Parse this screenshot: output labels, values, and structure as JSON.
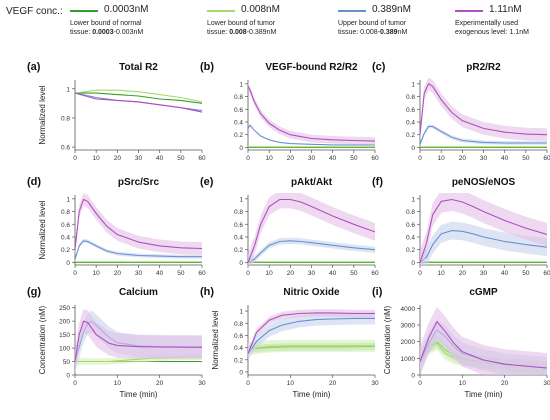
{
  "legend": {
    "title": "VEGF conc.:",
    "items": [
      {
        "conc": "0.0003nM",
        "color": "#33a02c",
        "note_pre": "Lower bound of normal",
        "note_mid": "tissue: ",
        "note_bold": "0.0003",
        "note_post": "-0.003nM"
      },
      {
        "conc": "0.008nM",
        "color": "#a6d96a",
        "note_pre": "Lower bound of tumor",
        "note_mid": "tissue: ",
        "note_bold": "0.008",
        "note_post": "-0.389nM"
      },
      {
        "conc": "0.389nM",
        "color": "#6a8fd0",
        "note_pre": "Upper bound of tumor",
        "note_mid": "tissue: 0.008-",
        "note_bold": "0.389",
        "note_post": "nM"
      },
      {
        "conc": "1.11nM",
        "color": "#b04fc0",
        "note_pre": "Experimentally used",
        "note_mid": "exogenous level: 1.1nM",
        "note_bold": "",
        "note_post": ""
      }
    ]
  },
  "bands": {
    "#33a02c": "#a9d9a0",
    "#a6d96a": "#d6eeb8",
    "#6a8fd0": "#c7d4ee",
    "#b04fc0": "#e3bfe6"
  },
  "xlabel_bottom": "Time (min)",
  "chart_data": [
    {
      "type": "line",
      "panel": "(a)",
      "title": "Total R2",
      "ylabel": "Normalized  level",
      "xlim": [
        0,
        60
      ],
      "ylim": [
        0.58,
        1.06
      ],
      "xticks": [
        0,
        10,
        20,
        30,
        40,
        50,
        60
      ],
      "yticks": [
        0.6,
        0.8,
        1
      ],
      "series": [
        {
          "color": "#33a02c",
          "x": [
            0,
            10,
            20,
            30,
            40,
            50,
            60
          ],
          "y": [
            0.97,
            0.97,
            0.96,
            0.95,
            0.93,
            0.92,
            0.9
          ]
        },
        {
          "color": "#a6d96a",
          "x": [
            0,
            10,
            20,
            30,
            40,
            50,
            60
          ],
          "y": [
            0.97,
            0.99,
            0.99,
            0.98,
            0.96,
            0.94,
            0.91
          ]
        },
        {
          "color": "#6a8fd0",
          "x": [
            0,
            10,
            20,
            30,
            40,
            50,
            60
          ],
          "y": [
            0.97,
            0.94,
            0.92,
            0.91,
            0.89,
            0.87,
            0.85
          ]
        },
        {
          "color": "#b04fc0",
          "x": [
            0,
            10,
            20,
            30,
            40,
            50,
            60
          ],
          "y": [
            0.97,
            0.93,
            0.92,
            0.91,
            0.89,
            0.87,
            0.84
          ]
        }
      ]
    },
    {
      "type": "line",
      "panel": "(b)",
      "title": "VEGF-bound R2/R2",
      "ylabel": "",
      "xlim": [
        0,
        60
      ],
      "ylim": [
        -0.04,
        1.06
      ],
      "xticks": [
        0,
        10,
        20,
        30,
        40,
        50,
        60
      ],
      "yticks": [
        0,
        0.2,
        0.4,
        0.6,
        0.8,
        1
      ],
      "series": [
        {
          "color": "#33a02c",
          "x": [
            0,
            10,
            20,
            30,
            40,
            50,
            60
          ],
          "y": [
            0,
            0,
            0,
            0,
            0,
            0,
            0
          ]
        },
        {
          "color": "#a6d96a",
          "x": [
            0,
            10,
            20,
            30,
            40,
            50,
            60
          ],
          "y": [
            0.01,
            0.01,
            0.01,
            0.01,
            0.01,
            0.01,
            0.01
          ]
        },
        {
          "color": "#6a8fd0",
          "x": [
            0,
            1,
            3,
            6,
            10,
            15,
            20,
            30,
            40,
            50,
            60
          ],
          "y": [
            0.3,
            0.35,
            0.27,
            0.18,
            0.12,
            0.08,
            0.06,
            0.05,
            0.04,
            0.04,
            0.04
          ]
        },
        {
          "color": "#b04fc0",
          "x": [
            0,
            1,
            3,
            6,
            10,
            15,
            20,
            30,
            40,
            50,
            60
          ],
          "y": [
            0.96,
            0.9,
            0.72,
            0.53,
            0.38,
            0.27,
            0.2,
            0.14,
            0.12,
            0.11,
            0.1
          ],
          "band": 0.06
        }
      ]
    },
    {
      "type": "line",
      "panel": "(c)",
      "title": "pR2/R2",
      "ylabel": "",
      "xlim": [
        0,
        60
      ],
      "ylim": [
        -0.04,
        1.06
      ],
      "xticks": [
        0,
        10,
        20,
        30,
        40,
        50,
        60
      ],
      "yticks": [
        0,
        0.2,
        0.4,
        0.6,
        0.8,
        1
      ],
      "series": [
        {
          "color": "#33a02c",
          "x": [
            0,
            10,
            20,
            30,
            40,
            50,
            60
          ],
          "y": [
            0,
            0,
            0,
            0,
            0,
            0,
            0
          ]
        },
        {
          "color": "#a6d96a",
          "x": [
            0,
            10,
            20,
            30,
            40,
            50,
            60
          ],
          "y": [
            0.01,
            0.01,
            0.01,
            0.01,
            0.01,
            0.01,
            0.01
          ]
        },
        {
          "color": "#6a8fd0",
          "x": [
            0,
            2,
            4,
            6,
            10,
            15,
            20,
            30,
            40,
            50,
            60
          ],
          "y": [
            0.05,
            0.22,
            0.33,
            0.33,
            0.25,
            0.16,
            0.11,
            0.08,
            0.07,
            0.07,
            0.07
          ],
          "band": 0.03
        },
        {
          "color": "#b04fc0",
          "x": [
            0,
            2,
            4,
            6,
            10,
            15,
            20,
            30,
            40,
            50,
            60
          ],
          "y": [
            0.2,
            0.85,
            1.0,
            0.96,
            0.75,
            0.55,
            0.42,
            0.3,
            0.24,
            0.21,
            0.2
          ],
          "band": 0.1
        }
      ]
    },
    {
      "type": "line",
      "panel": "(d)",
      "title": "pSrc/Src",
      "ylabel": "Normalized  level",
      "xlim": [
        0,
        60
      ],
      "ylim": [
        -0.04,
        1.06
      ],
      "xticks": [
        0,
        10,
        20,
        30,
        40,
        50,
        60
      ],
      "yticks": [
        0,
        0.2,
        0.4,
        0.6,
        0.8,
        1
      ],
      "series": [
        {
          "color": "#33a02c",
          "x": [
            0,
            10,
            20,
            30,
            40,
            50,
            60
          ],
          "y": [
            0,
            0,
            0,
            0,
            0,
            0,
            0
          ]
        },
        {
          "color": "#a6d96a",
          "x": [
            0,
            10,
            20,
            30,
            40,
            50,
            60
          ],
          "y": [
            0.01,
            0.01,
            0.01,
            0.01,
            0.01,
            0.01,
            0.01
          ]
        },
        {
          "color": "#6a8fd0",
          "x": [
            0,
            2,
            4,
            6,
            10,
            15,
            20,
            30,
            40,
            50,
            60
          ],
          "y": [
            0.05,
            0.26,
            0.34,
            0.33,
            0.26,
            0.18,
            0.14,
            0.11,
            0.1,
            0.09,
            0.09
          ],
          "band": 0.03
        },
        {
          "color": "#b04fc0",
          "x": [
            0,
            2,
            4,
            6,
            10,
            15,
            20,
            30,
            40,
            50,
            60
          ],
          "y": [
            0.2,
            0.8,
            0.99,
            0.96,
            0.77,
            0.57,
            0.44,
            0.32,
            0.26,
            0.23,
            0.22
          ],
          "band": 0.1
        }
      ]
    },
    {
      "type": "line",
      "panel": "(e)",
      "title": "pAkt/Akt",
      "ylabel": "",
      "xlim": [
        0,
        60
      ],
      "ylim": [
        -0.04,
        1.06
      ],
      "xticks": [
        0,
        10,
        20,
        30,
        40,
        50,
        60
      ],
      "yticks": [
        0,
        0.2,
        0.4,
        0.6,
        0.8,
        1
      ],
      "series": [
        {
          "color": "#33a02c",
          "x": [
            0,
            10,
            20,
            30,
            40,
            50,
            60
          ],
          "y": [
            0,
            0,
            0,
            0,
            0,
            0,
            0
          ]
        },
        {
          "color": "#a6d96a",
          "x": [
            0,
            10,
            20,
            30,
            40,
            50,
            60
          ],
          "y": [
            0.01,
            0.01,
            0.01,
            0.01,
            0.01,
            0.01,
            0.01
          ]
        },
        {
          "color": "#6a8fd0",
          "x": [
            0,
            3,
            6,
            10,
            15,
            20,
            25,
            30,
            40,
            50,
            60
          ],
          "y": [
            0,
            0.05,
            0.15,
            0.27,
            0.33,
            0.34,
            0.33,
            0.31,
            0.27,
            0.23,
            0.2
          ],
          "band": 0.05
        },
        {
          "color": "#b04fc0",
          "x": [
            0,
            3,
            6,
            10,
            15,
            20,
            25,
            30,
            40,
            50,
            60
          ],
          "y": [
            0,
            0.25,
            0.6,
            0.88,
            0.99,
            0.99,
            0.95,
            0.88,
            0.73,
            0.6,
            0.48
          ],
          "band": 0.14
        }
      ]
    },
    {
      "type": "line",
      "panel": "(f)",
      "title": "peNOS/eNOS",
      "ylabel": "",
      "xlim": [
        0,
        60
      ],
      "ylim": [
        -0.04,
        1.06
      ],
      "xticks": [
        0,
        10,
        20,
        30,
        40,
        50,
        60
      ],
      "yticks": [
        0,
        0.2,
        0.4,
        0.6,
        0.8,
        1
      ],
      "series": [
        {
          "color": "#33a02c",
          "x": [
            0,
            10,
            20,
            30,
            40,
            50,
            60
          ],
          "y": [
            0,
            0,
            0,
            0,
            0,
            0,
            0
          ]
        },
        {
          "color": "#a6d96a",
          "x": [
            0,
            10,
            20,
            30,
            40,
            50,
            60
          ],
          "y": [
            0.01,
            0.01,
            0.01,
            0.01,
            0.01,
            0.01,
            0.01
          ]
        },
        {
          "color": "#6a8fd0",
          "x": [
            0,
            3,
            6,
            10,
            15,
            20,
            25,
            30,
            40,
            50,
            60
          ],
          "y": [
            0,
            0.08,
            0.28,
            0.45,
            0.5,
            0.49,
            0.45,
            0.4,
            0.33,
            0.28,
            0.24
          ],
          "band": 0.14
        },
        {
          "color": "#b04fc0",
          "x": [
            0,
            3,
            6,
            10,
            15,
            20,
            25,
            30,
            40,
            50,
            60
          ],
          "y": [
            0,
            0.3,
            0.75,
            0.96,
            0.99,
            0.95,
            0.88,
            0.8,
            0.66,
            0.54,
            0.44
          ],
          "band": 0.18
        }
      ]
    },
    {
      "type": "line",
      "panel": "(g)",
      "title": "Calcium",
      "ylabel": "Concentration (nM)",
      "xlim": [
        0,
        30
      ],
      "ylim": [
        0,
        260
      ],
      "xticks": [
        0,
        10,
        20,
        30
      ],
      "yticks": [
        0,
        50,
        100,
        150,
        200,
        250
      ],
      "series": [
        {
          "color": "#33a02c",
          "x": [
            0,
            10,
            20,
            30
          ],
          "y": [
            50,
            50,
            50,
            50
          ]
        },
        {
          "color": "#a6d96a",
          "x": [
            0,
            8,
            12,
            18,
            24,
            30
          ],
          "y": [
            50,
            50,
            55,
            62,
            66,
            68
          ],
          "band": 12
        },
        {
          "color": "#6a8fd0",
          "x": [
            0,
            2,
            3,
            4,
            6,
            8,
            10,
            15,
            20,
            30
          ],
          "y": [
            50,
            160,
            190,
            200,
            170,
            140,
            120,
            108,
            105,
            104
          ],
          "band": 40
        },
        {
          "color": "#b04fc0",
          "x": [
            0,
            1,
            2,
            3,
            5,
            8,
            10,
            15,
            20,
            30
          ],
          "y": [
            50,
            150,
            200,
            195,
            150,
            118,
            110,
            105,
            104,
            103
          ],
          "band": 45
        }
      ]
    },
    {
      "type": "line",
      "panel": "(h)",
      "title": "Nitric Oxide",
      "ylabel": "Normalized  level",
      "xlim": [
        0,
        30
      ],
      "ylim": [
        -0.05,
        1.1
      ],
      "xticks": [
        0,
        10,
        20,
        30
      ],
      "yticks": [
        0,
        0.2,
        0.4,
        0.6,
        0.8,
        1
      ],
      "series": [
        {
          "color": "#33a02c",
          "x": [
            0,
            5,
            10,
            20,
            30
          ],
          "y": [
            0.38,
            0.4,
            0.41,
            0.41,
            0.42
          ],
          "band": 0.06
        },
        {
          "color": "#a6d96a",
          "x": [
            0,
            5,
            10,
            20,
            30
          ],
          "y": [
            0.38,
            0.42,
            0.43,
            0.43,
            0.43
          ],
          "band": 0.1
        },
        {
          "color": "#6a8fd0",
          "x": [
            0,
            2,
            5,
            8,
            12,
            16,
            20,
            25,
            30
          ],
          "y": [
            0.3,
            0.5,
            0.68,
            0.77,
            0.83,
            0.86,
            0.87,
            0.88,
            0.88
          ],
          "band": 0.1
        },
        {
          "color": "#b04fc0",
          "x": [
            0,
            2,
            5,
            8,
            12,
            16,
            20,
            25,
            30
          ],
          "y": [
            0.3,
            0.65,
            0.85,
            0.93,
            0.96,
            0.97,
            0.97,
            0.96,
            0.96
          ],
          "band": 0.06
        }
      ]
    },
    {
      "type": "line",
      "panel": "(i)",
      "title": "cGMP",
      "ylabel": "Concentration (nM)",
      "xlim": [
        0,
        30
      ],
      "ylim": [
        0,
        4200
      ],
      "xticks": [
        0,
        10,
        20,
        30
      ],
      "yticks": [
        0,
        1000,
        2000,
        3000,
        4000
      ],
      "series": [
        {
          "color": "#33a02c",
          "x": [
            0,
            2,
            4,
            6,
            8,
            10,
            15,
            20,
            30
          ],
          "y": [
            800,
            1700,
            2000,
            1500,
            1200,
            1000,
            750,
            600,
            420
          ],
          "band": 350
        },
        {
          "color": "#a6d96a",
          "x": [
            0,
            2,
            4,
            6,
            8,
            10,
            15,
            20,
            30
          ],
          "y": [
            800,
            1600,
            1900,
            1300,
            1050,
            950,
            750,
            600,
            420
          ],
          "band": 400
        },
        {
          "color": "#6a8fd0",
          "x": [
            0,
            2,
            4,
            6,
            8,
            10,
            15,
            20,
            30
          ],
          "y": [
            800,
            1900,
            2700,
            2300,
            1700,
            1300,
            900,
            650,
            420
          ],
          "band": 650
        },
        {
          "color": "#b04fc0",
          "x": [
            0,
            2,
            4,
            6,
            8,
            10,
            15,
            20,
            30
          ],
          "y": [
            800,
            2200,
            3200,
            2600,
            1900,
            1400,
            900,
            650,
            420
          ],
          "band": 900
        }
      ]
    }
  ]
}
